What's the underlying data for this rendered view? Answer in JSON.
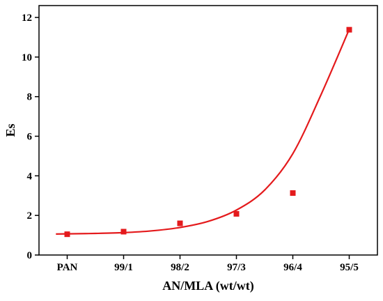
{
  "chart_data": {
    "type": "scatter",
    "title": "",
    "xlabel": "AN/MLA (wt/wt)",
    "ylabel": "Es",
    "categories": [
      "PAN",
      "99/1",
      "98/2",
      "97/3",
      "96/4",
      "95/5"
    ],
    "x_range": [
      -0.5,
      5.5
    ],
    "ylim": [
      0,
      12.6
    ],
    "y_ticks": [
      0,
      2,
      4,
      6,
      8,
      10,
      12
    ],
    "y_tick_labels": [
      "0",
      "2",
      "4",
      "6",
      "8",
      "10",
      "12"
    ],
    "grid": false,
    "legend": "none",
    "series": [
      {
        "type": "scatter",
        "marker": "square",
        "color": "#e41a1c",
        "values": [
          1.05,
          1.18,
          1.6,
          2.08,
          3.13,
          11.38
        ]
      },
      {
        "type": "line",
        "fit": "exponential",
        "color": "#e41a1c",
        "x": [
          -0.2,
          0,
          0.5,
          1,
          1.5,
          2,
          2.5,
          3,
          3.5,
          4,
          4.5,
          5
        ],
        "values": [
          1.06,
          1.07,
          1.09,
          1.13,
          1.22,
          1.39,
          1.7,
          2.27,
          3.28,
          5.12,
          8.1,
          11.4
        ]
      }
    ]
  }
}
